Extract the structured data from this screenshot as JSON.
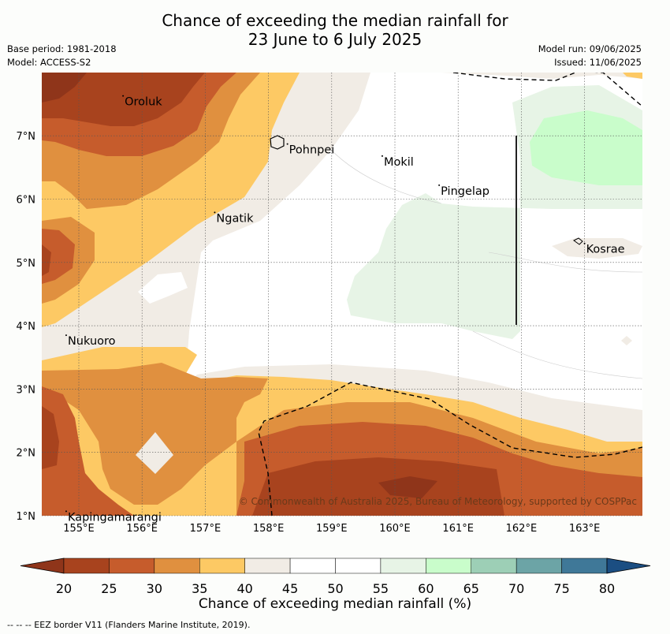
{
  "header": {
    "title_line1": "Chance of exceeding the median rainfall for",
    "title_line2": "23 June to 6 July 2025",
    "base_period": "Base period: 1981-2018",
    "model": "Model: ACCESS-S2",
    "model_run": "Model run: 09/06/2025",
    "issued": "Issued: 11/06/2025"
  },
  "map": {
    "lon_ticks": [
      "155°E",
      "156°E",
      "157°E",
      "158°E",
      "159°E",
      "160°E",
      "161°E",
      "162°E",
      "163°E"
    ],
    "lat_ticks": [
      "1°N",
      "2°N",
      "3°N",
      "4°N",
      "5°N",
      "6°N",
      "7°N"
    ],
    "places": [
      {
        "name": "Oroluk",
        "lon": 155.7,
        "lat": 7.63
      },
      {
        "name": "Pohnpei",
        "lon": 158.3,
        "lat": 6.87
      },
      {
        "name": "Mokil",
        "lon": 159.8,
        "lat": 6.68
      },
      {
        "name": "Pingelap",
        "lon": 160.7,
        "lat": 6.22
      },
      {
        "name": "Ngatik",
        "lon": 157.15,
        "lat": 5.79
      },
      {
        "name": "Kosrae",
        "lon": 163.0,
        "lat": 5.3
      },
      {
        "name": "Nukuoro",
        "lon": 154.8,
        "lat": 3.85
      },
      {
        "name": "Kapingamarangi",
        "lon": 154.8,
        "lat": 1.07
      }
    ],
    "copyright": "© Commonwealth of Australia 2025, Bureau of Meteorology, supported by COSPPac"
  },
  "colorbar": {
    "title": "Chance of exceeding median rainfall (%)",
    "ticks": [
      "20",
      "25",
      "30",
      "35",
      "40",
      "45",
      "50",
      "55",
      "60",
      "65",
      "70",
      "75",
      "80"
    ],
    "colors": [
      "#a8431e",
      "#c65c2c",
      "#e0903f",
      "#fdc964",
      "#f1ece5",
      "#ffffff",
      "#ffffff",
      "#e7f4e6",
      "#c9fdcb",
      "#9dcfb6",
      "#6ca4a6",
      "#3f7898"
    ],
    "under_color": "#8f351a",
    "over_color": "#1b4e82"
  },
  "footnote": "--  --  -- EEZ border V11 (Flanders Marine Institute, 2019)."
}
